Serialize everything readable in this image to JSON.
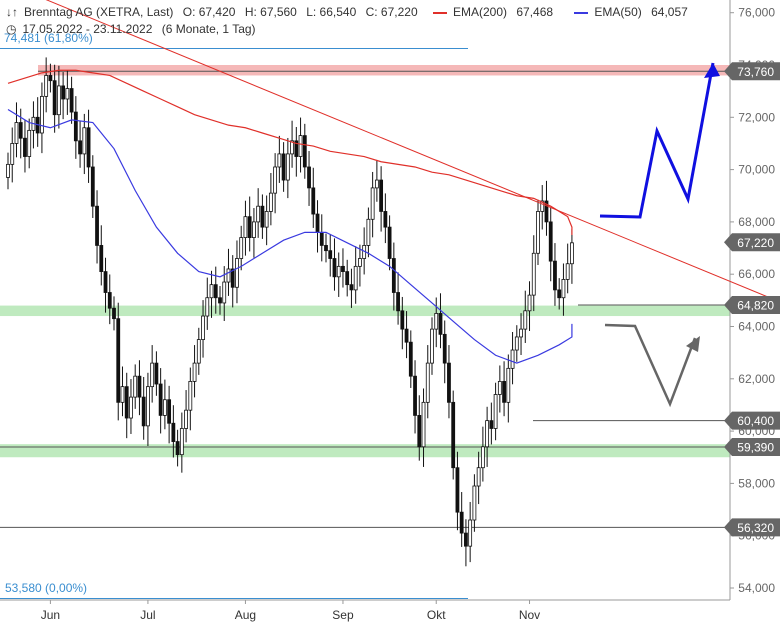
{
  "header": {
    "title": "Brenntag AG (XETRA, Last)",
    "open": "O: 67,420",
    "high": "H: 67,560",
    "low": "L: 66,540",
    "close": "C: 67,220",
    "ema200_label": "EMA(200)",
    "ema200_value": "67,468",
    "ema50_label": "EMA(50)",
    "ema50_value": "64,057",
    "range": "17.05.2022 - 23.11.2022",
    "period": "(6 Monate, 1 Tag)"
  },
  "colors": {
    "ema200": "#e0302a",
    "ema50": "#3a3ae0",
    "resistance_zone": "#f5b8b8",
    "support_zone": "#bfeabf",
    "price_tag": "#666666",
    "projection_up": "#1010e0",
    "projection_down": "#666666",
    "fib_label": "#3a8ed0"
  },
  "annotations": {
    "fib_top": "74,481 (61,80%)",
    "fib_bottom": "53,580 (0,00%)"
  },
  "price_tags": [
    "73,760",
    "67,220",
    "64,820",
    "60,400",
    "59,390",
    "56,320"
  ],
  "chart_data": {
    "type": "candlestick",
    "title": "Brenntag AG (XETRA, Last)",
    "ylim": [
      53.3,
      76.3
    ],
    "y_ticks": [
      "76,000",
      "74,000",
      "72,000",
      "70,000",
      "68,000",
      "66,000",
      "64,000",
      "62,000",
      "60,000",
      "58,000",
      "56,000",
      "54,000"
    ],
    "x_month_labels": [
      {
        "label": "Jun",
        "index": 10
      },
      {
        "label": "Jul",
        "index": 33
      },
      {
        "label": "Aug",
        "index": 56
      },
      {
        "label": "Sep",
        "index": 79
      },
      {
        "label": "Okt",
        "index": 101
      },
      {
        "label": "Nov",
        "index": 123
      }
    ],
    "close_series": [
      70.2,
      71.0,
      71.8,
      71.2,
      70.5,
      71.5,
      72.0,
      71.4,
      72.8,
      73.6,
      73.4,
      72.1,
      73.2,
      72.7,
      73.1,
      72.2,
      71.1,
      70.6,
      71.6,
      70.1,
      68.6,
      67.1,
      66.1,
      65.3,
      64.7,
      64.3,
      61.1,
      61.7,
      60.5,
      61.3,
      62.1,
      61.3,
      60.2,
      61.7,
      62.6,
      61.8,
      60.6,
      61.2,
      60.3,
      59.6,
      59.1,
      60.1,
      60.8,
      61.9,
      62.6,
      63.5,
      64.4,
      65.1,
      65.6,
      65.1,
      64.9,
      65.7,
      66.2,
      65.5,
      66.6,
      67.4,
      68.2,
      67.4,
      68.0,
      68.6,
      67.8,
      68.4,
      69.1,
      70.1,
      70.6,
      69.6,
      70.6,
      71.1,
      70.5,
      71.3,
      70.1,
      69.3,
      68.3,
      67.6,
      67.1,
      66.9,
      66.6,
      65.9,
      66.3,
      66.1,
      65.6,
      65.4,
      66.3,
      66.6,
      67.1,
      68.1,
      69.3,
      69.6,
      68.4,
      67.8,
      66.6,
      65.3,
      64.6,
      63.9,
      63.4,
      62.1,
      60.6,
      59.4,
      61.1,
      62.6,
      63.9,
      64.5,
      63.7,
      62.6,
      61.1,
      58.6,
      56.9,
      56.1,
      55.6,
      56.6,
      57.9,
      58.6,
      59.4,
      60.4,
      60.1,
      61.4,
      61.9,
      61.1,
      62.4,
      63.1,
      63.6,
      63.9,
      64.6,
      65.2,
      66.8,
      68.4,
      68.8,
      68.0,
      66.5,
      65.4,
      65.1,
      65.8,
      66.4,
      67.2
    ],
    "ema200_series": [
      73.3,
      73.5,
      73.7,
      73.8,
      73.8,
      73.7,
      73.6,
      73.3,
      73.0,
      72.7,
      72.4,
      72.1,
      71.9,
      71.7,
      71.6,
      71.4,
      71.2,
      71.0,
      70.9,
      70.7,
      70.6,
      70.5,
      70.3,
      70.2,
      70.1,
      69.9,
      69.8,
      69.6,
      69.4,
      69.2,
      69.0,
      68.9,
      68.6,
      68.2,
      67.8,
      67.5
    ],
    "ema50_series": [
      72.3,
      71.8,
      71.6,
      71.9,
      71.8,
      70.8,
      69.2,
      67.8,
      66.8,
      66.1,
      65.9,
      66.3,
      66.8,
      67.3,
      67.6,
      67.6,
      67.2,
      66.8,
      66.3,
      65.6,
      64.9,
      64.2,
      63.5,
      62.9,
      62.6,
      62.9,
      63.3,
      63.6,
      64.1
    ],
    "trendline": {
      "from": [
        0,
        77.1
      ],
      "to": [
        145,
        65.2
      ]
    },
    "horizontal_levels": [
      73.76,
      64.82,
      60.4,
      59.39,
      56.32
    ],
    "resistance_zone": [
      73.6,
      74.0
    ],
    "support_zones": [
      [
        64.4,
        64.8
      ],
      [
        59.0,
        59.5
      ]
    ],
    "projection_up": [
      [
        600,
        216
      ],
      [
        640,
        217
      ],
      [
        657,
        131
      ],
      [
        688,
        199
      ],
      [
        713,
        63
      ]
    ],
    "projection_down": [
      [
        605,
        325
      ],
      [
        635,
        326
      ],
      [
        670,
        404
      ],
      [
        695,
        338
      ]
    ]
  }
}
